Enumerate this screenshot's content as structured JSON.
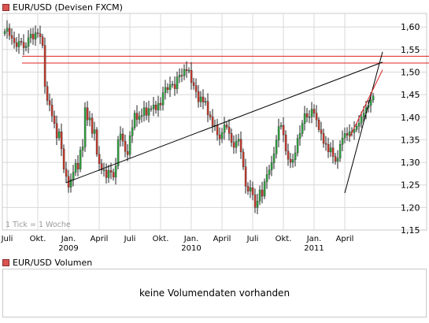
{
  "main_title": "EUR/USD (Devisen FXCM)",
  "volume_title": "EUR/USD Volumen",
  "no_volume_text": "keine Volumendaten vorhanden",
  "tick_note": "1 Tick = 1 Woche",
  "colors": {
    "up": "#2e9e3e",
    "down": "#c0392b",
    "resistance": "#e02020",
    "trendline": "#000000",
    "grid": "#d8d8d8",
    "legend": "#d9534f"
  },
  "chart_data": {
    "type": "candlestick",
    "title": "EUR/USD (Devisen FXCM)",
    "ylim": [
      1.15,
      1.63
    ],
    "y_ticks": [
      "1,60",
      "1,55",
      "1,50",
      "1,45",
      "1,40",
      "1,35",
      "1,30",
      "1,25",
      "1,20",
      "1,15"
    ],
    "y_tick_values": [
      1.6,
      1.55,
      1.5,
      1.45,
      1.4,
      1.35,
      1.3,
      1.25,
      1.2,
      1.15
    ],
    "x_ticks": [
      {
        "label": "Juli",
        "year": "",
        "week": 1
      },
      {
        "label": "Okt.",
        "year": "",
        "week": 14
      },
      {
        "label": "Jan.",
        "year": "2009",
        "week": 27
      },
      {
        "label": "April",
        "year": "",
        "week": 40
      },
      {
        "label": "Juli",
        "year": "",
        "week": 53
      },
      {
        "label": "Okt.",
        "year": "",
        "week": 66
      },
      {
        "label": "Jan.",
        "year": "2010",
        "week": 79
      },
      {
        "label": "April",
        "year": "",
        "week": 92
      },
      {
        "label": "Juli",
        "year": "",
        "week": 105
      },
      {
        "label": "Okt.",
        "year": "",
        "week": 118
      },
      {
        "label": "Jan.",
        "year": "2011",
        "week": 131
      },
      {
        "label": "April",
        "year": "",
        "week": 144
      }
    ],
    "grid": true,
    "closes": [
      1.59,
      1.597,
      1.581,
      1.575,
      1.565,
      1.556,
      1.568,
      1.566,
      1.554,
      1.557,
      1.576,
      1.584,
      1.573,
      1.587,
      1.585,
      1.578,
      1.559,
      1.468,
      1.437,
      1.427,
      1.403,
      1.386,
      1.354,
      1.368,
      1.33,
      1.285,
      1.269,
      1.245,
      1.262,
      1.278,
      1.298,
      1.285,
      1.327,
      1.334,
      1.421,
      1.394,
      1.398,
      1.364,
      1.372,
      1.318,
      1.297,
      1.283,
      1.283,
      1.266,
      1.282,
      1.278,
      1.267,
      1.292,
      1.35,
      1.363,
      1.347,
      1.324,
      1.317,
      1.359,
      1.377,
      1.409,
      1.395,
      1.402,
      1.404,
      1.421,
      1.404,
      1.419,
      1.419,
      1.427,
      1.416,
      1.431,
      1.427,
      1.454,
      1.466,
      1.461,
      1.472,
      1.473,
      1.463,
      1.489,
      1.493,
      1.492,
      1.506,
      1.503,
      1.504,
      1.477,
      1.47,
      1.457,
      1.434,
      1.445,
      1.433,
      1.435,
      1.405,
      1.401,
      1.381,
      1.382,
      1.361,
      1.352,
      1.366,
      1.383,
      1.378,
      1.364,
      1.344,
      1.333,
      1.347,
      1.351,
      1.323,
      1.29,
      1.247,
      1.236,
      1.244,
      1.228,
      1.2,
      1.214,
      1.239,
      1.225,
      1.257,
      1.273,
      1.283,
      1.299,
      1.319,
      1.349,
      1.379,
      1.382,
      1.361,
      1.325,
      1.307,
      1.3,
      1.306,
      1.321,
      1.353,
      1.364,
      1.386,
      1.408,
      1.4,
      1.401,
      1.418,
      1.409,
      1.394,
      1.372,
      1.364,
      1.342,
      1.34,
      1.323,
      1.332,
      1.313,
      1.302,
      1.309,
      1.34,
      1.354,
      1.364,
      1.36,
      1.368,
      1.366,
      1.373,
      1.38,
      1.387,
      1.401,
      1.409,
      1.421,
      1.426,
      1.438,
      1.447
    ],
    "resistance_levels": [
      1.52,
      1.535
    ],
    "trendlines": [
      {
        "name": "support-uptrend",
        "x1": 26,
        "y1": 1.255,
        "x2": 160,
        "y2": 1.522
      },
      {
        "name": "steep-uptrend-lower",
        "x1": 144,
        "y1": 1.232,
        "x2": 160,
        "y2": 1.545
      },
      {
        "name": "steep-uptrend-upper",
        "x1": 146,
        "y1": 1.355,
        "x2": 160,
        "y2": 1.505
      }
    ]
  }
}
